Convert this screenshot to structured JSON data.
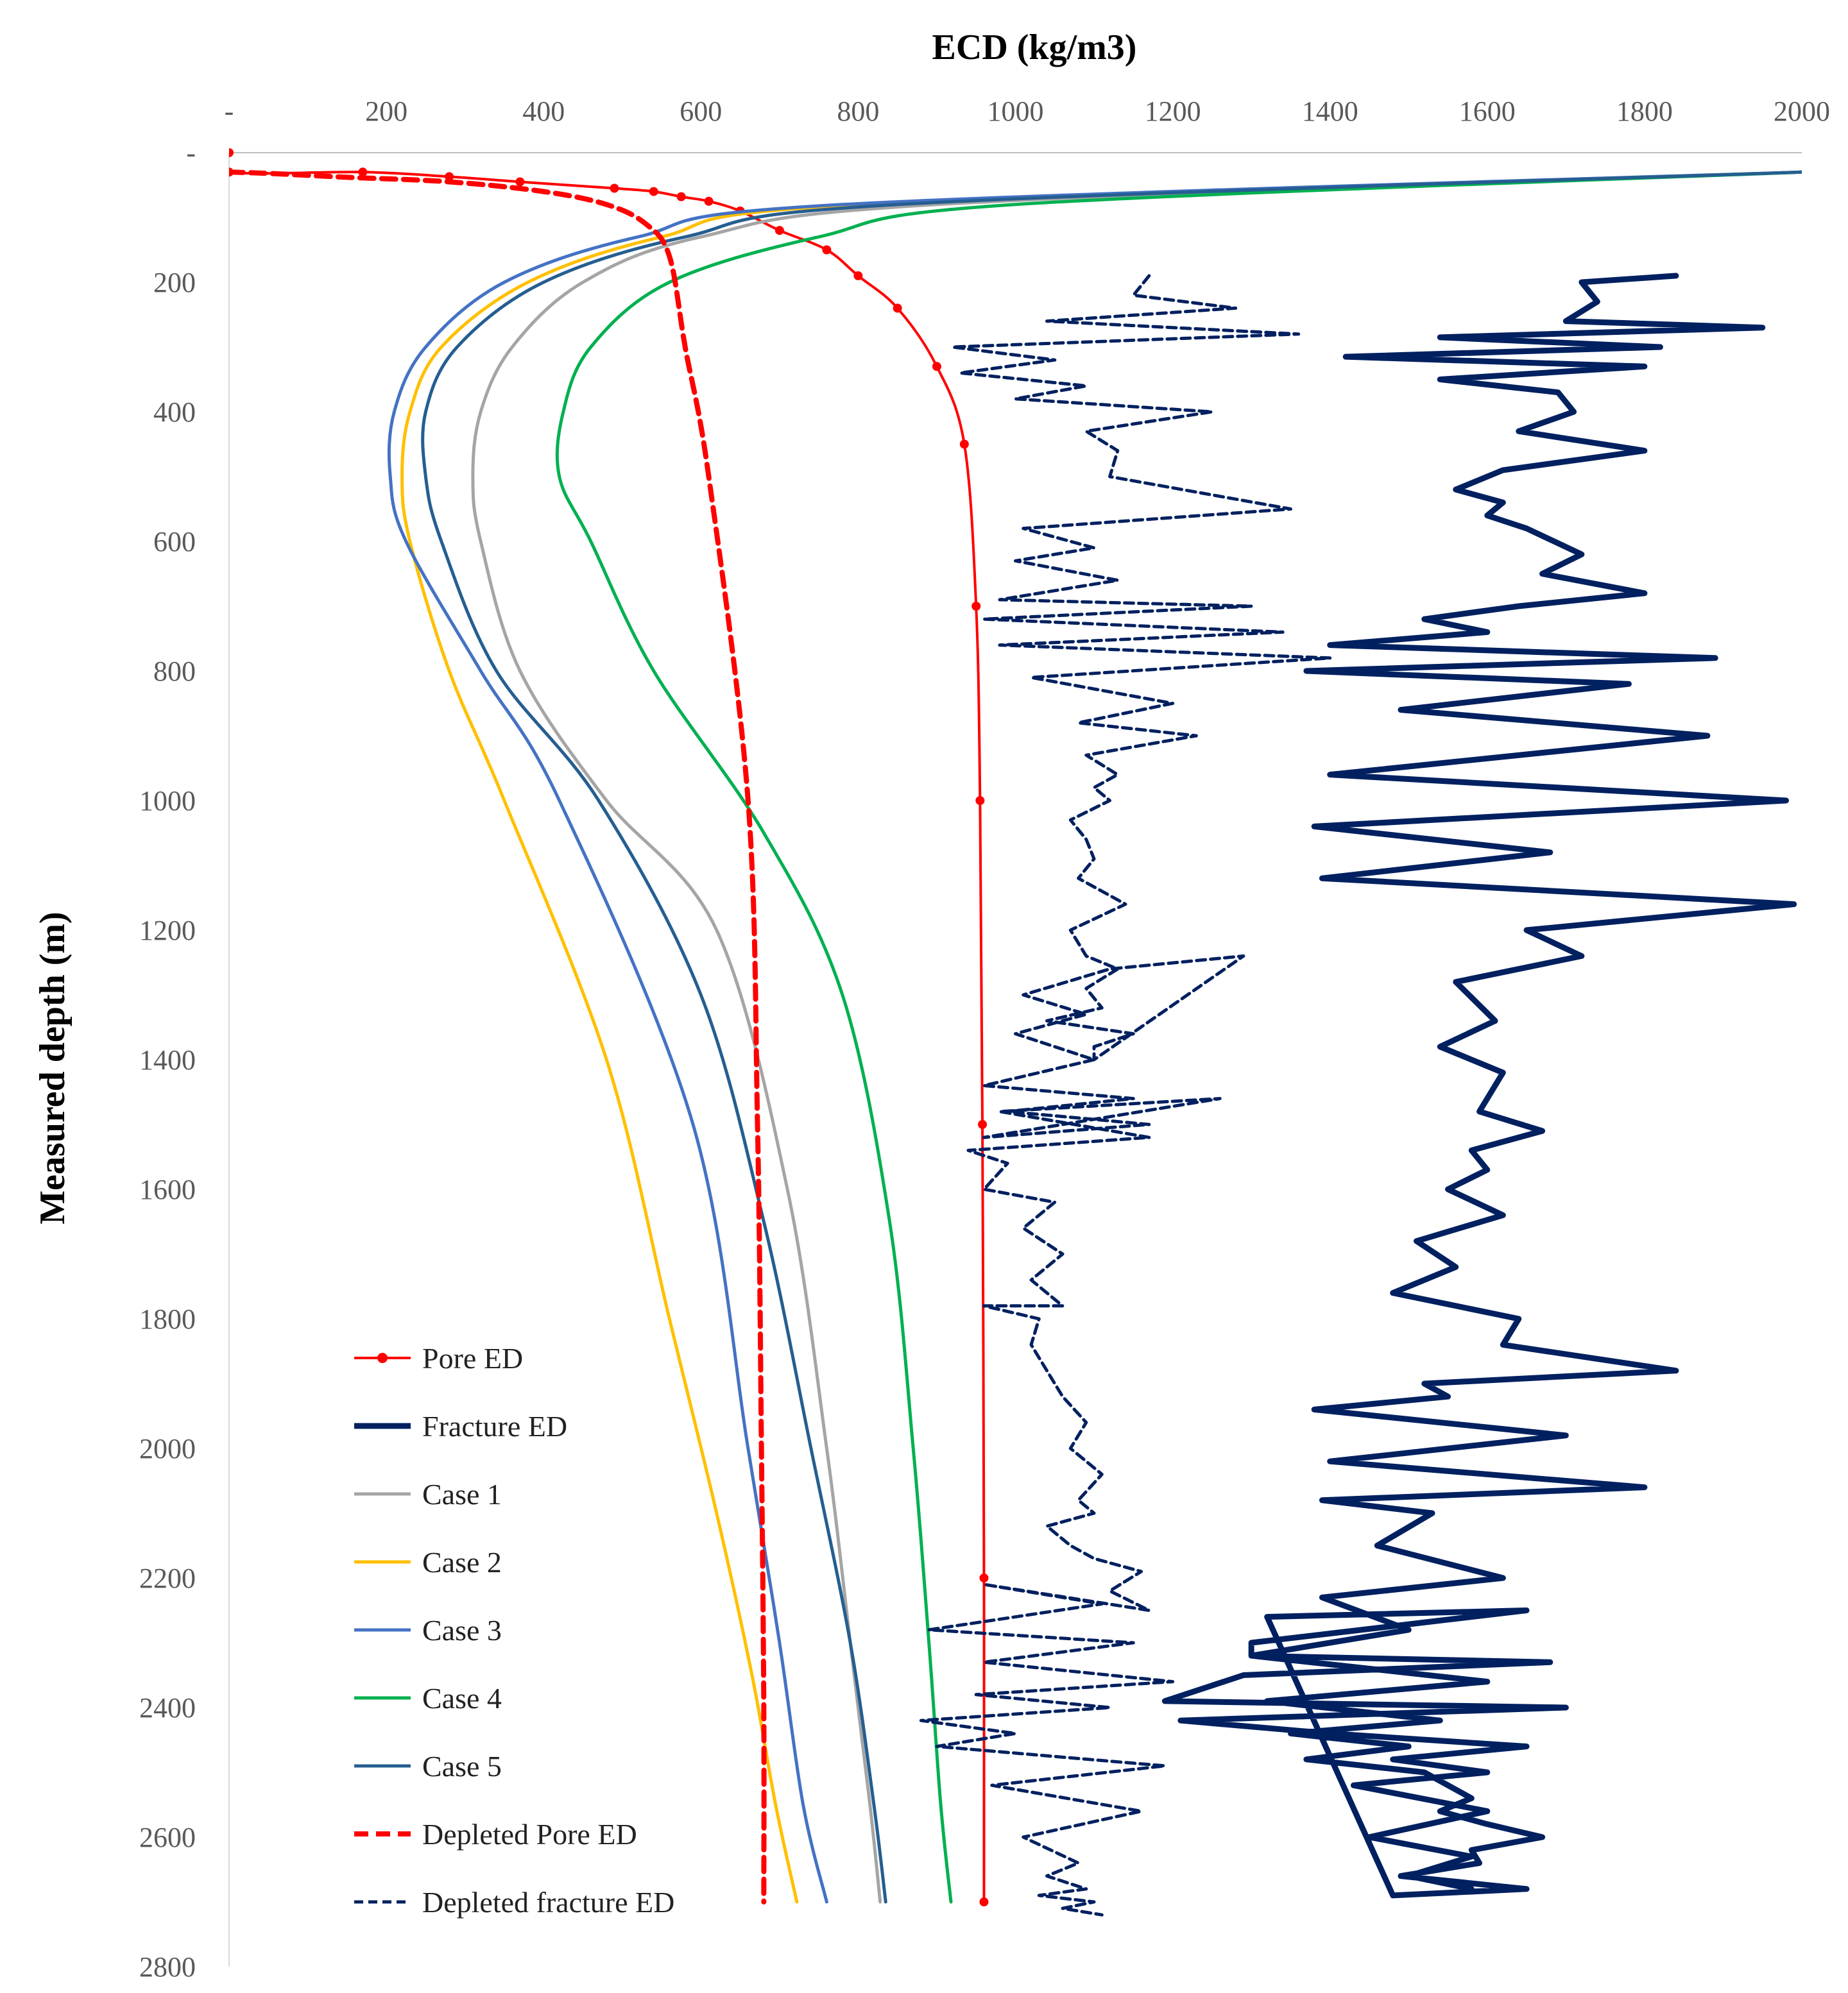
{
  "chart_data": {
    "type": "line",
    "title": "",
    "xlabel": "ECD (kg/m3)",
    "ylabel": "Measured depth (m)",
    "x_axis_position": "top",
    "y_axis_inverted": true,
    "xlim": [
      0,
      2000
    ],
    "ylim": [
      0,
      2800
    ],
    "xticks": [
      0,
      200,
      400,
      600,
      800,
      1000,
      1200,
      1400,
      1600,
      1800,
      2000
    ],
    "xtick_labels": [
      "-",
      "200",
      "400",
      "600",
      "800",
      "1000",
      "1200",
      "1400",
      "1600",
      "1800",
      "2000"
    ],
    "yticks": [
      0,
      200,
      400,
      600,
      800,
      1000,
      1200,
      1400,
      1600,
      1800,
      2000,
      2200,
      2400,
      2600,
      2800
    ],
    "ytick_labels": [
      "-",
      "200",
      "400",
      "600",
      "800",
      "1000",
      "1200",
      "1400",
      "1600",
      "1800",
      "2000",
      "2200",
      "2400",
      "2600",
      "2800"
    ],
    "grid": false,
    "legend_position": "bottom-left",
    "series": [
      {
        "name": "Pore ED",
        "color": "#ff0000",
        "style": "solid-markers",
        "x": [
          0,
          0,
          170,
          280,
          370,
          490,
          540,
          575,
          610,
          650,
          700,
          760,
          800,
          850,
          900,
          935,
          950,
          955,
          958,
          960,
          960
        ],
        "y": [
          0,
          30,
          30,
          37,
          45,
          55,
          60,
          68,
          75,
          90,
          120,
          150,
          190,
          240,
          330,
          450,
          700,
          1000,
          1500,
          2200,
          2700
        ]
      },
      {
        "name": "Fracture ED",
        "color": "#002060",
        "style": "solid-thick",
        "x": [
          1840,
          1720,
          1740,
          1700,
          1950,
          1540,
          1820,
          1420,
          1800,
          1540,
          1690,
          1710,
          1640,
          1800,
          1620,
          1560,
          1620,
          1600,
          1650,
          1720,
          1670,
          1800,
          1640,
          1520,
          1600,
          1400,
          1890,
          1370,
          1780,
          1490,
          1880,
          1400,
          1980,
          1380,
          1680,
          1390,
          1990,
          1650,
          1720,
          1560,
          1610,
          1540,
          1620,
          1600,
          1590,
          1670,
          1580,
          1600,
          1550,
          1620,
          1510,
          1560,
          1480,
          1640,
          1620,
          1840,
          1520,
          1550,
          1380,
          1700,
          1400,
          1800,
          1390,
          1530,
          1460,
          1620,
          1390,
          1500,
          1300,
          1600,
          1320,
          1540,
          1350,
          1500,
          1370,
          1520,
          1580,
          1540,
          1600,
          1670,
          1580,
          1590,
          1490,
          1650,
          1480,
          1320,
          1650,
          1300,
          1300,
          1680,
          1290,
          1190,
          1700,
          1210,
          1400,
          1650,
          1480,
          1600,
          1430,
          1600,
          1450,
          1580,
          1500,
          1580
        ],
        "y": [
          190,
          200,
          230,
          260,
          270,
          285,
          300,
          315,
          330,
          350,
          370,
          400,
          430,
          460,
          490,
          520,
          540,
          560,
          580,
          620,
          650,
          680,
          700,
          720,
          740,
          760,
          780,
          800,
          820,
          860,
          900,
          960,
          1000,
          1040,
          1080,
          1120,
          1160,
          1200,
          1240,
          1280,
          1340,
          1380,
          1420,
          1460,
          1480,
          1510,
          1540,
          1570,
          1600,
          1640,
          1680,
          1720,
          1760,
          1800,
          1840,
          1880,
          1900,
          1920,
          1940,
          1980,
          2020,
          2060,
          2080,
          2100,
          2150,
          2200,
          2230,
          2280,
          2320,
          2360,
          2390,
          2420,
          2440,
          2460,
          2480,
          2500,
          2540,
          2560,
          2580,
          2600,
          2620,
          2640,
          2660,
          2680,
          2690,
          2260,
          2250,
          2300,
          2320,
          2330,
          2350,
          2390,
          2400,
          2420,
          2440,
          2460,
          2480,
          2500,
          2520,
          2560,
          2600,
          2630,
          2660,
          2680
        ]
      },
      {
        "name": "Case 1",
        "color": "#a5a5a5",
        "style": "solid",
        "x": [
          2000,
          900,
          600,
          450,
          360,
          320,
          310,
          320,
          370,
          480,
          620,
          710,
          760,
          790,
          815,
          828
        ],
        "y": [
          30,
          80,
          130,
          200,
          300,
          400,
          500,
          600,
          800,
          1000,
          1200,
          1600,
          2000,
          2300,
          2550,
          2700
        ]
      },
      {
        "name": "Case 2",
        "color": "#ffc000",
        "style": "solid",
        "x": [
          2000,
          800,
          550,
          380,
          270,
          230,
          220,
          230,
          280,
          350,
          480,
          560,
          620,
          665,
          695,
          722
        ],
        "y": [
          30,
          80,
          130,
          200,
          300,
          400,
          500,
          600,
          800,
          1000,
          1400,
          1800,
          2100,
          2350,
          2550,
          2700
        ]
      },
      {
        "name": "Case 3",
        "color": "#4472c4",
        "style": "solid",
        "x": [
          2000,
          780,
          520,
          350,
          250,
          210,
          205,
          225,
          320,
          420,
          590,
          660,
          700,
          730,
          760
        ],
        "y": [
          30,
          80,
          130,
          200,
          300,
          400,
          500,
          600,
          800,
          1000,
          1500,
          2000,
          2300,
          2550,
          2700
        ]
      },
      {
        "name": "Case 4",
        "color": "#00b050",
        "style": "solid",
        "x": [
          2000,
          1000,
          750,
          560,
          460,
          425,
          420,
          460,
          540,
          680,
          780,
          840,
          870,
          890,
          905,
          918
        ],
        "y": [
          30,
          80,
          130,
          200,
          300,
          400,
          500,
          600,
          800,
          1050,
          1300,
          1650,
          2000,
          2300,
          2550,
          2700
        ]
      },
      {
        "name": "Case 5",
        "color": "#255e91",
        "style": "solid",
        "x": [
          2000,
          850,
          580,
          400,
          290,
          250,
          250,
          270,
          340,
          470,
          600,
          680,
          740,
          790,
          820,
          835
        ],
        "y": [
          30,
          80,
          130,
          200,
          300,
          400,
          500,
          600,
          800,
          1000,
          1300,
          1650,
          2000,
          2300,
          2550,
          2700
        ]
      },
      {
        "name": "Depleted Pore ED",
        "color": "#ff0000",
        "style": "dashed-thick",
        "x": [
          0,
          50,
          150,
          280,
          400,
          480,
          530,
          560,
          580,
          610,
          660,
          672,
          677,
          680,
          680
        ],
        "y": [
          30,
          32,
          38,
          45,
          60,
          80,
          110,
          160,
          300,
          500,
          1000,
          1500,
          2000,
          2400,
          2700
        ]
      },
      {
        "name": "Depleted fracture ED",
        "color": "#002060",
        "style": "dashed",
        "x": [
          1170,
          1150,
          1280,
          1040,
          1360,
          920,
          1050,
          930,
          1090,
          1000,
          1250,
          1090,
          1130,
          1120,
          1350,
          1010,
          1100,
          1000,
          1130,
          980,
          1300,
          960,
          1340,
          980,
          1400,
          1020,
          1200,
          1080,
          1230,
          1090,
          1130,
          1100,
          1120,
          1070,
          1090,
          1100,
          1080,
          1140,
          1070,
          1090,
          1130,
          1090,
          1110,
          1040,
          1150,
          1100,
          1100,
          1290,
          1120,
          1010,
          1090,
          1000,
          1100,
          960,
          1150,
          990,
          1170,
          960,
          1260,
          980,
          1170,
          940,
          990,
          960,
          1050,
          1010,
          1060,
          1020,
          1060,
          960,
          1030,
          1020,
          1040,
          1060,
          1090,
          1070,
          1110,
          1080,
          1100,
          1040,
          1070,
          1100,
          1160,
          1120,
          1170,
          960,
          1110,
          890,
          1150,
          960,
          1200,
          950,
          1120,
          880,
          1000,
          900,
          1190,
          970,
          1160,
          1010,
          1080,
          1040,
          1090,
          1030,
          1100,
          1060,
          1110
        ],
        "y": [
          190,
          220,
          240,
          260,
          280,
          300,
          320,
          340,
          360,
          380,
          400,
          430,
          460,
          500,
          550,
          580,
          610,
          630,
          660,
          690,
          700,
          720,
          740,
          760,
          780,
          810,
          850,
          880,
          900,
          930,
          960,
          980,
          1000,
          1030,
          1060,
          1090,
          1120,
          1160,
          1200,
          1240,
          1260,
          1290,
          1320,
          1340,
          1360,
          1380,
          1400,
          1240,
          1260,
          1300,
          1330,
          1360,
          1400,
          1440,
          1460,
          1480,
          1500,
          1520,
          1460,
          1480,
          1520,
          1540,
          1560,
          1600,
          1620,
          1660,
          1700,
          1740,
          1780,
          1780,
          1800,
          1840,
          1880,
          1920,
          1960,
          2000,
          2040,
          2080,
          2100,
          2120,
          2150,
          2170,
          2190,
          2220,
          2250,
          2210,
          2240,
          2280,
          2300,
          2330,
          2360,
          2380,
          2400,
          2420,
          2440,
          2460,
          2490,
          2520,
          2560,
          2600,
          2640,
          2660,
          2680,
          2690,
          2700,
          2710,
          2720
        ]
      }
    ]
  }
}
